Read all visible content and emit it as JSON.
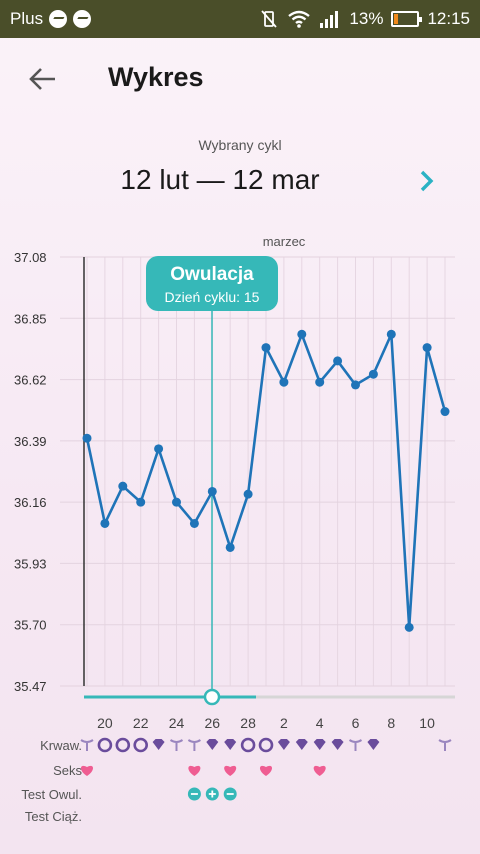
{
  "status_bar": {
    "carrier": "Plus",
    "battery": "13%",
    "time": "12:15",
    "icons": [
      "messenger-icon",
      "messenger-icon",
      "vibrate-icon",
      "wifi-icon",
      "signal-icon",
      "battery-icon"
    ]
  },
  "header": {
    "title": "Wykres",
    "back_icon": "arrow-left-icon"
  },
  "cycle": {
    "label": "Wybrany cykl",
    "range": "12 lut — 12 mar",
    "next_icon": "chevron-right-icon"
  },
  "chart_data": {
    "type": "line",
    "month_label": "marzec",
    "y_ticks": [
      "37.08",
      "36.85",
      "36.62",
      "36.39",
      "36.16",
      "35.93",
      "35.70",
      "35.47"
    ],
    "ylim": [
      35.47,
      37.08
    ],
    "x_tick_labels": [
      "20",
      "22",
      "24",
      "26",
      "28",
      "2",
      "4",
      "6",
      "8",
      "10"
    ],
    "series": [
      {
        "values": [
          36.4,
          36.08,
          36.22,
          36.16,
          36.36,
          36.16,
          36.08,
          36.2,
          35.99,
          36.19,
          36.74,
          36.61,
          36.79,
          36.61,
          36.69,
          36.6,
          36.64,
          36.79,
          35.69,
          36.74,
          36.5
        ],
        "color": "#1f74b8"
      }
    ],
    "ovulation": {
      "title": "Owulacja",
      "subtitle": "Dzień cyklu: 15",
      "color": "#36b8b8"
    }
  },
  "rows": {
    "bleeding_label": "Krwaw.",
    "sex_label": "Seks",
    "ovulation_test_label": "Test Owul.",
    "pregnancy_test_label": "Test Ciąż.",
    "bleeding_marks": [
      "drop",
      "ring",
      "ring",
      "ring",
      "diamond",
      "drop",
      "drop",
      "diamond",
      "diamond",
      "ring",
      "ring",
      "diamond",
      "diamond",
      "diamond",
      "diamond",
      "drop",
      "diamond",
      "",
      "",
      "",
      "drop"
    ],
    "sex_marks": [
      "heart",
      "",
      "",
      "",
      "",
      "",
      "heart",
      "",
      "heart",
      "",
      "heart",
      "",
      "",
      "heart",
      "",
      "",
      "",
      "",
      "",
      "",
      ""
    ],
    "ovulation_test_marks": [
      "",
      "",
      "",
      "",
      "",
      "",
      "minus",
      "plus",
      "minus",
      "",
      "",
      "",
      "",
      "",
      "",
      "",
      "",
      "",
      "",
      "",
      ""
    ]
  },
  "colors": {
    "line": "#1f74b8",
    "ovulation": "#36b8b8",
    "bleeding": "#6a4c9c",
    "heart": "#ef5d92"
  }
}
